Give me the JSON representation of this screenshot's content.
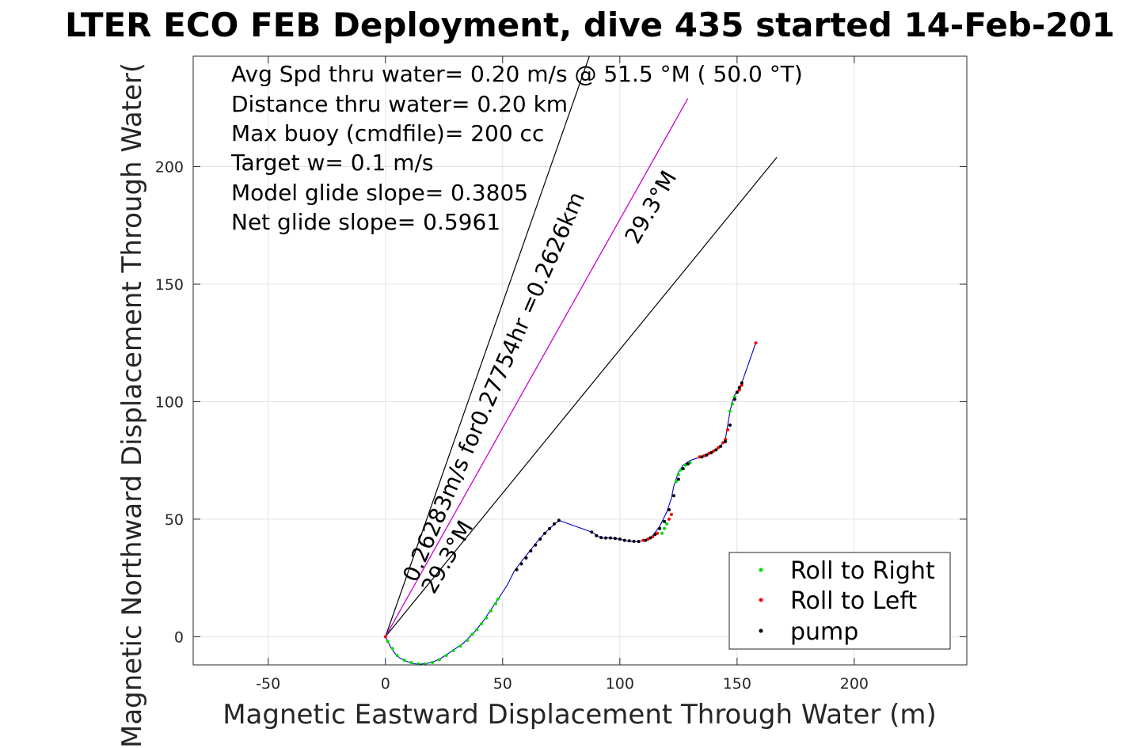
{
  "chart_data": {
    "type": "scatter",
    "title": "LTER ECO FEB Deployment, dive 435 started 14-Feb-201",
    "xlabel": "Magnetic Eastward Displacement Through Water (m)",
    "ylabel": "Magnetic Northward Displacement Through Water(",
    "xlim": [
      -82,
      248
    ],
    "ylim": [
      -12,
      247
    ],
    "xticks": [
      -50,
      0,
      50,
      100,
      150,
      200
    ],
    "yticks": [
      0,
      50,
      100,
      150,
      200
    ],
    "grid": true,
    "legend_position": "bottom-right",
    "info_lines": [
      "Avg Spd thru water=  0.20 m/s @  51.5 °M ( 50.0 °T)",
      "Distance thru water=  0.20 km",
      "Max buoy (cmdfile)= 200 cc",
      "Target w= 0.1 m/s",
      "Model glide slope= 0.3805",
      "Net glide slope= 0.5961"
    ],
    "annotations": [
      "0.26283m/s for0.27754hr =0.2626km",
      "29.3°M",
      "29.3°M"
    ],
    "legend": [
      {
        "label": "Roll to Right",
        "color": "#00dd00"
      },
      {
        "label": "Roll to Left",
        "color": "#ff0000"
      },
      {
        "label": "pump",
        "color": "#000000"
      }
    ],
    "black_lines": [
      {
        "x": [
          0,
          87
        ],
        "y": [
          0,
          247
        ]
      },
      {
        "x": [
          0,
          167
        ],
        "y": [
          0,
          204
        ]
      }
    ],
    "magenta_line": {
      "x": [
        0,
        129
      ],
      "y": [
        0,
        229
      ],
      "color": "#cc00cc"
    },
    "track_color": "#0000cc",
    "track": {
      "x": [
        0,
        2,
        4,
        6,
        9,
        12,
        15,
        18,
        21,
        24,
        27,
        30,
        33,
        36,
        38,
        40,
        42,
        44,
        46,
        48,
        52,
        55,
        58,
        62,
        66,
        70,
        74,
        88,
        92,
        96,
        100,
        104,
        108,
        111,
        114,
        117,
        120,
        122,
        123,
        125,
        127,
        130,
        133,
        137,
        142,
        145,
        146,
        147,
        148,
        149,
        150,
        151,
        152,
        158
      ],
      "y": [
        0,
        -4,
        -7,
        -9,
        -10.5,
        -11.5,
        -11.7,
        -11.3,
        -10.5,
        -9,
        -7,
        -5,
        -3,
        0,
        2,
        4.5,
        7,
        10,
        13,
        16,
        22,
        28,
        32,
        37,
        42,
        46,
        49.5,
        44.5,
        42,
        42,
        41.5,
        40.5,
        40.5,
        41,
        43,
        47,
        53,
        59,
        64,
        70,
        73,
        75,
        76,
        77,
        80,
        84,
        90,
        96,
        100,
        103,
        104,
        106,
        108,
        125
      ]
    },
    "series": [
      {
        "name": "Roll to Right",
        "color": "#00dd00",
        "x": [
          1,
          3,
          5,
          8,
          11,
          14,
          17,
          20,
          23,
          26,
          29,
          32,
          35,
          37,
          39,
          41,
          43,
          45,
          47,
          48,
          118,
          119,
          120,
          124,
          125,
          126,
          128,
          130,
          147,
          148,
          149
        ],
        "y": [
          -2,
          -5,
          -8,
          -10,
          -11,
          -11.6,
          -11.6,
          -11,
          -9.8,
          -8,
          -6,
          -4,
          -1.5,
          1,
          3,
          5.5,
          8,
          11,
          14,
          16,
          44,
          46,
          48,
          66,
          69,
          71,
          73,
          74,
          96,
          99,
          102
        ]
      },
      {
        "name": "Roll to Left",
        "color": "#ff0000",
        "x": [
          0,
          110,
          112,
          114,
          116,
          121,
          122,
          134,
          136,
          138,
          140,
          142,
          144,
          145,
          146,
          150,
          151,
          152,
          158
        ],
        "y": [
          0,
          41,
          41.5,
          42.5,
          44,
          50,
          52,
          76.5,
          77,
          78,
          79,
          80.5,
          82.5,
          84,
          88,
          104,
          105,
          107,
          125
        ]
      },
      {
        "name": "pump",
        "color": "#000000",
        "x": [
          56,
          58,
          60,
          62,
          64,
          66,
          68,
          70,
          72,
          74,
          88,
          90,
          92,
          94,
          96,
          98,
          100,
          102,
          104,
          106,
          108,
          111,
          113,
          115,
          117,
          119,
          121,
          123,
          125,
          127,
          129,
          135,
          137,
          139,
          141,
          143,
          145,
          147,
          149,
          150,
          151,
          152
        ],
        "y": [
          28.5,
          31,
          33.5,
          36.5,
          39,
          41.5,
          44,
          46,
          48,
          49.5,
          44.5,
          43,
          42.2,
          42,
          42,
          41.8,
          41.5,
          41,
          40.8,
          40.6,
          40.5,
          41,
          42,
          43.5,
          46,
          49,
          54,
          60,
          67,
          71.5,
          73.5,
          76.5,
          77.3,
          78.3,
          79.5,
          81,
          83,
          90,
          101,
          104,
          106,
          108
        ]
      }
    ]
  }
}
